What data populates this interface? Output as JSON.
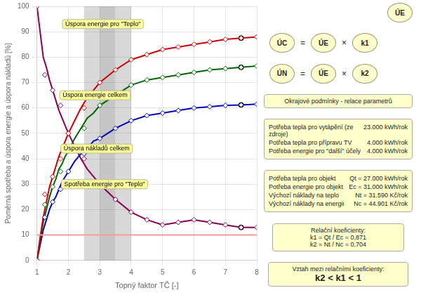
{
  "chart_data": {
    "type": "line",
    "xlabel": "Topný faktor TČ [-]",
    "ylabel": "Poměrná spotřeba a úspora energie a úspora nákladů [%]",
    "xlim": [
      1,
      8
    ],
    "ylim": [
      0,
      100
    ],
    "xticks": [
      1,
      2,
      3,
      4,
      5,
      6,
      7,
      8
    ],
    "yticks": [
      0,
      10,
      20,
      30,
      40,
      50,
      60,
      70,
      80,
      90,
      100
    ],
    "grid": true,
    "bands": [
      {
        "from": 2.5,
        "to": 3.0,
        "color": "#C0C0C0"
      },
      {
        "from": 3.0,
        "to": 3.5,
        "color": "#A0A0A0"
      },
      {
        "from": 3.5,
        "to": 4.0,
        "color": "#C0C0C0"
      }
    ],
    "series": [
      {
        "color": "#FF9999",
        "x": [
          1,
          8
        ],
        "values": [
          10,
          10
        ],
        "marker": "none",
        "line_style": "solid"
      },
      {
        "color": "#CC0000",
        "x": [
          1.0,
          1.1,
          1.2,
          1.3,
          1.4,
          1.5,
          1.6,
          1.7,
          1.8,
          1.9,
          2.0,
          2.2,
          2.4,
          2.6,
          2.8,
          3.0,
          3.5,
          4.0,
          4.5,
          5.0,
          5.5,
          6.0,
          6.5,
          7.0,
          7.5,
          8.0
        ],
        "values": [
          0,
          9,
          17,
          23,
          29,
          33,
          37,
          41,
          44,
          47,
          50,
          55,
          60,
          64,
          67,
          70,
          75,
          79,
          81,
          83,
          84,
          85,
          86,
          87,
          87.5,
          88
        ],
        "marker": "none",
        "line_style": "solid"
      },
      {
        "color": "#CC0000",
        "x": [
          1.0,
          1.25,
          1.5,
          1.75,
          2.0,
          2.5,
          3.0,
          3.5,
          4.0,
          4.5,
          5.0,
          5.5,
          6.0,
          6.5,
          7.0,
          7.5,
          8.0
        ],
        "values": [
          0,
          26,
          33,
          40,
          50,
          60,
          70,
          75,
          79,
          81,
          83,
          84,
          85,
          86,
          87,
          87.5,
          88
        ],
        "marker": "diamond",
        "line_style": "none"
      },
      {
        "color": "#006600",
        "x": [
          1.0,
          1.1,
          1.2,
          1.3,
          1.4,
          1.5,
          1.6,
          1.7,
          1.8,
          1.9,
          2.0,
          2.2,
          2.4,
          2.6,
          2.8,
          3.0,
          3.5,
          4.0,
          4.5,
          5.0,
          5.5,
          6.0,
          6.5,
          7.0,
          7.5,
          8.0
        ],
        "values": [
          0,
          8,
          15,
          20,
          25,
          29,
          32,
          36,
          38,
          41,
          43,
          48,
          52,
          56,
          58,
          61,
          65,
          69,
          71,
          72,
          73,
          74,
          75,
          75.5,
          76,
          76.5
        ],
        "marker": "none",
        "line_style": "solid"
      },
      {
        "color": "#006600",
        "x": [
          1.0,
          1.25,
          1.5,
          1.75,
          2.0,
          2.5,
          3.0,
          3.5,
          4.0,
          4.5,
          5.0,
          5.5,
          6.0,
          6.5,
          7.0,
          7.5,
          8.0
        ],
        "values": [
          0,
          22,
          29,
          35,
          43,
          52,
          61,
          65,
          69,
          71,
          72,
          73,
          74,
          75,
          75.5,
          76,
          76.5
        ],
        "marker": "diamond",
        "line_style": "none"
      },
      {
        "color": "#0000BB",
        "x": [
          1.0,
          1.1,
          1.2,
          1.3,
          1.4,
          1.5,
          1.6,
          1.7,
          1.8,
          1.9,
          2.0,
          2.2,
          2.4,
          2.6,
          2.8,
          3.0,
          3.5,
          4.0,
          4.5,
          5.0,
          5.5,
          6.0,
          6.5,
          7.0,
          7.5,
          8.0
        ],
        "values": [
          0,
          6,
          12,
          16,
          20,
          23,
          25,
          28,
          31,
          33,
          35,
          39,
          42,
          44,
          47,
          48,
          52,
          55,
          57,
          58,
          59,
          60,
          60.5,
          61,
          61.2,
          61.5
        ],
        "marker": "none",
        "line_style": "solid"
      },
      {
        "color": "#0000BB",
        "x": [
          1.0,
          1.25,
          1.5,
          1.75,
          2.0,
          2.5,
          3.0,
          3.5,
          4.0,
          4.5,
          5.0,
          5.5,
          6.0,
          6.5,
          7.0,
          7.5,
          8.0
        ],
        "values": [
          0,
          17,
          23,
          28,
          35,
          42,
          48,
          52,
          55,
          57,
          58,
          59,
          60,
          60.5,
          61,
          61.2,
          61.5
        ],
        "marker": "diamond",
        "line_style": "none"
      },
      {
        "color": "#880055",
        "x": [
          1.0,
          1.1,
          1.2,
          1.3,
          1.4,
          1.5,
          1.6,
          1.7,
          1.8,
          1.9,
          2.0,
          2.2,
          2.4,
          2.6,
          2.8,
          3.0,
          3.5,
          4.0,
          4.5,
          5.0,
          5.5,
          6.0,
          6.5,
          7.0,
          7.5,
          8.0
        ],
        "values": [
          100,
          90,
          80,
          76,
          71,
          67,
          63,
          59,
          56,
          53,
          50,
          45,
          40,
          36,
          33,
          30,
          24,
          19,
          16,
          14,
          15,
          16,
          15,
          14,
          13,
          13
        ],
        "marker": "none",
        "line_style": "solid"
      },
      {
        "color": "#880055",
        "x": [
          1.0,
          1.25,
          1.5,
          1.75,
          2.0,
          2.5,
          3.0,
          3.5,
          4.0,
          4.5,
          5.0,
          5.5,
          6.0,
          6.5,
          7.0,
          7.5,
          8.0
        ],
        "values": [
          100,
          73,
          67,
          61,
          50,
          40,
          30,
          24,
          19,
          16,
          14,
          15,
          16,
          15,
          14,
          13,
          13
        ],
        "marker": "diamond",
        "line_style": "none"
      },
      {
        "color": "#000000",
        "x": [
          7.5,
          7.5,
          7.5,
          7.5
        ],
        "values": [
          87.5,
          76.0,
          61.2,
          13.0
        ],
        "marker": "circle",
        "line_style": "none"
      }
    ],
    "annotations": [
      {
        "text": "Úspora energie pro \"Teplo\"",
        "x": 3.1,
        "y": 93
      },
      {
        "text": "Úspora energie celkem",
        "x": 2.85,
        "y": 65
      },
      {
        "text": "Úspora nákladů celkem",
        "x": 2.9,
        "y": 44
      },
      {
        "text": "Spotřeba energie pro \"Teplo\"",
        "x": 3.15,
        "y": 30
      }
    ],
    "panel": {
      "badge": "ÚE",
      "equations": [
        [
          "ÚC",
          "=",
          "ÚE",
          "×",
          "k1"
        ],
        [
          "ÚN",
          "=",
          "ÚE",
          "×",
          "k2"
        ]
      ],
      "heading": "Okrajové podmínky - relace parametrů",
      "table1": [
        [
          "Potřeba tepla pro vytápění (ze zdroje)",
          "23.000 kWh/rok"
        ],
        [
          "Potřeba tepla pro přípravu TV",
          "4.000 kWh/rok"
        ],
        [
          "Potřeba energie pro \"další\" účely",
          "4.000 kWh/rok"
        ]
      ],
      "table2": [
        [
          "Potřeba tepla pro objekt",
          "Qt = 27.000 kWh/rok"
        ],
        [
          "Potřeba energie pro objekt",
          "Ec = 31.000 kWh/rok"
        ],
        [
          "Výchozí náklady na teplo",
          "Nt = 31.590 Kč/rok"
        ],
        [
          "Výchozí náklady na energii",
          "Nc = 44.901 Kč/rok"
        ]
      ],
      "coefficients": [
        "Relační koeficienty:",
        "k1 = Qt / Ec = 0,871",
        "k2 = Nt / Nc = 0,704"
      ],
      "relation": [
        "Vztah mezi relačními koeficienty:",
        "k2 < k1 < 1"
      ]
    }
  }
}
